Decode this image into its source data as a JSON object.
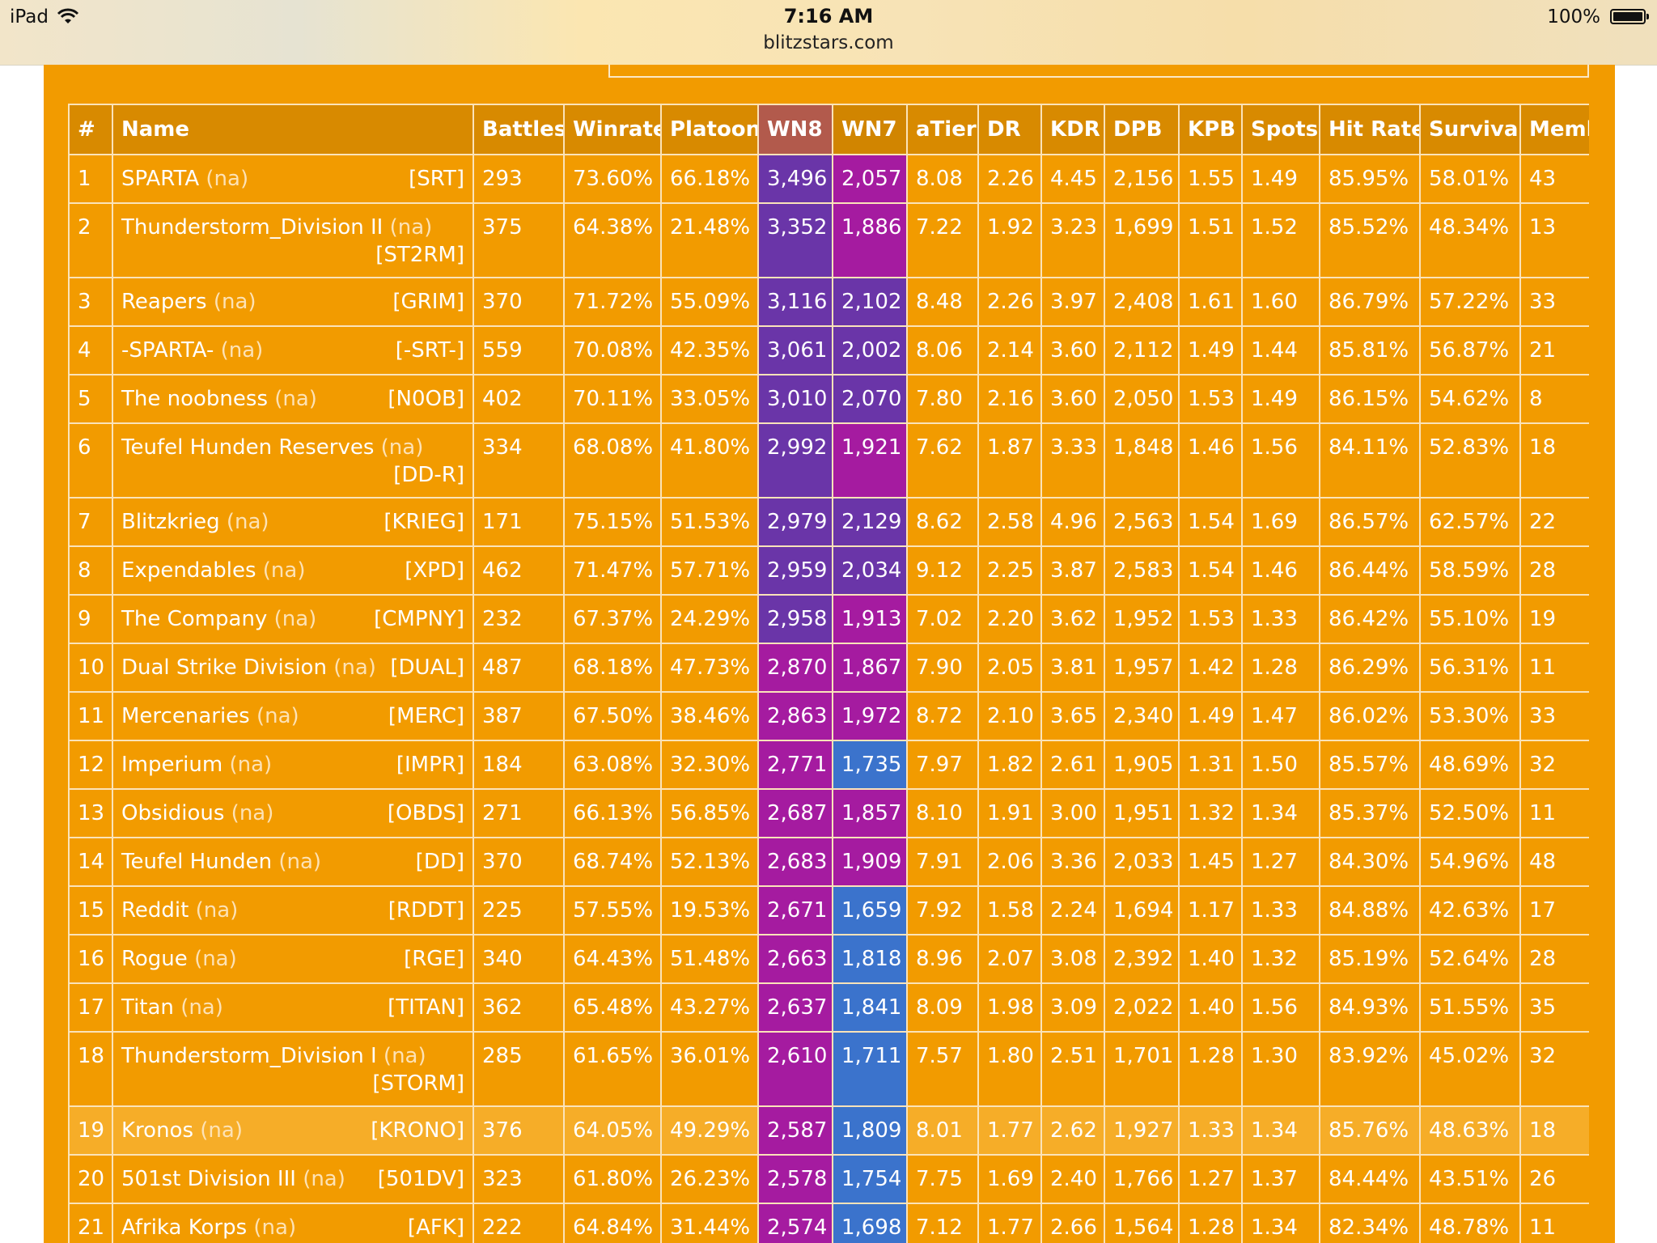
{
  "status_bar": {
    "carrier": "iPad",
    "time": "7:16 AM",
    "url": "blitzstars.com",
    "battery": "100%"
  },
  "colors": {
    "page_bg": "#f29b00",
    "purple": "#6a35a8",
    "magenta": "#a51ba0",
    "blue": "#3b73cc"
  },
  "table": {
    "headers": [
      "#",
      "Name",
      "Battles",
      "Winrate",
      "Platoon",
      "WN8",
      "WN7",
      "aTier",
      "DR",
      "KDR",
      "DPB",
      "KPB",
      "Spots",
      "Hit Rate",
      "Survival",
      "Memb"
    ],
    "rows": [
      {
        "rank": "1",
        "name": "SPARTA",
        "region": "(na)",
        "tag": "[SRT]",
        "battles": "293",
        "winrate": "73.60%",
        "platoon": "66.18%",
        "wn8": "3,496",
        "wn8_color": "#6a35a8",
        "wn7": "2,057",
        "wn7_color": "#a51ba0",
        "atier": "8.08",
        "dr": "2.26",
        "kdr": "4.45",
        "dpb": "2,156",
        "kpb": "1.55",
        "spots": "1.49",
        "hitrate": "85.95%",
        "survival": "58.01%",
        "members": "43"
      },
      {
        "rank": "2",
        "name": "Thunderstorm_Division II",
        "region": "(na)",
        "tag": "[ST2RM]",
        "battles": "375",
        "winrate": "64.38%",
        "platoon": "21.48%",
        "wn8": "3,352",
        "wn8_color": "#6a35a8",
        "wn7": "1,886",
        "wn7_color": "#a51ba0",
        "atier": "7.22",
        "dr": "1.92",
        "kdr": "3.23",
        "dpb": "1,699",
        "kpb": "1.51",
        "spots": "1.52",
        "hitrate": "85.52%",
        "survival": "48.34%",
        "members": "13"
      },
      {
        "rank": "3",
        "name": "Reapers",
        "region": "(na)",
        "tag": "[GRIM]",
        "battles": "370",
        "winrate": "71.72%",
        "platoon": "55.09%",
        "wn8": "3,116",
        "wn8_color": "#6a35a8",
        "wn7": "2,102",
        "wn7_color": "#6a35a8",
        "atier": "8.48",
        "dr": "2.26",
        "kdr": "3.97",
        "dpb": "2,408",
        "kpb": "1.61",
        "spots": "1.60",
        "hitrate": "86.79%",
        "survival": "57.22%",
        "members": "33"
      },
      {
        "rank": "4",
        "name": "-SPARTA-",
        "region": "(na)",
        "tag": "[-SRT-]",
        "battles": "559",
        "winrate": "70.08%",
        "platoon": "42.35%",
        "wn8": "3,061",
        "wn8_color": "#6a35a8",
        "wn7": "2,002",
        "wn7_color": "#6a35a8",
        "atier": "8.06",
        "dr": "2.14",
        "kdr": "3.60",
        "dpb": "2,112",
        "kpb": "1.49",
        "spots": "1.44",
        "hitrate": "85.81%",
        "survival": "56.87%",
        "members": "21"
      },
      {
        "rank": "5",
        "name": "The noobness",
        "region": "(na)",
        "tag": "[N0OB]",
        "battles": "402",
        "winrate": "70.11%",
        "platoon": "33.05%",
        "wn8": "3,010",
        "wn8_color": "#6a35a8",
        "wn7": "2,070",
        "wn7_color": "#6a35a8",
        "atier": "7.80",
        "dr": "2.16",
        "kdr": "3.60",
        "dpb": "2,050",
        "kpb": "1.53",
        "spots": "1.49",
        "hitrate": "86.15%",
        "survival": "54.62%",
        "members": "8"
      },
      {
        "rank": "6",
        "name": "Teufel Hunden Reserves",
        "region": "(na)",
        "tag": "[DD-R]",
        "battles": "334",
        "winrate": "68.08%",
        "platoon": "41.80%",
        "wn8": "2,992",
        "wn8_color": "#6a35a8",
        "wn7": "1,921",
        "wn7_color": "#a51ba0",
        "atier": "7.62",
        "dr": "1.87",
        "kdr": "3.33",
        "dpb": "1,848",
        "kpb": "1.46",
        "spots": "1.56",
        "hitrate": "84.11%",
        "survival": "52.83%",
        "members": "18"
      },
      {
        "rank": "7",
        "name": "Blitzkrieg",
        "region": "(na)",
        "tag": "[KRIEG]",
        "battles": "171",
        "winrate": "75.15%",
        "platoon": "51.53%",
        "wn8": "2,979",
        "wn8_color": "#6a35a8",
        "wn7": "2,129",
        "wn7_color": "#6a35a8",
        "atier": "8.62",
        "dr": "2.58",
        "kdr": "4.96",
        "dpb": "2,563",
        "kpb": "1.54",
        "spots": "1.69",
        "hitrate": "86.57%",
        "survival": "62.57%",
        "members": "22"
      },
      {
        "rank": "8",
        "name": "Expendables",
        "region": "(na)",
        "tag": "[XPD]",
        "battles": "462",
        "winrate": "71.47%",
        "platoon": "57.71%",
        "wn8": "2,959",
        "wn8_color": "#6a35a8",
        "wn7": "2,034",
        "wn7_color": "#6a35a8",
        "atier": "9.12",
        "dr": "2.25",
        "kdr": "3.87",
        "dpb": "2,583",
        "kpb": "1.54",
        "spots": "1.46",
        "hitrate": "86.44%",
        "survival": "58.59%",
        "members": "28"
      },
      {
        "rank": "9",
        "name": "The Company",
        "region": "(na)",
        "tag": "[CMPNY]",
        "battles": "232",
        "winrate": "67.37%",
        "platoon": "24.29%",
        "wn8": "2,958",
        "wn8_color": "#6a35a8",
        "wn7": "1,913",
        "wn7_color": "#a51ba0",
        "atier": "7.02",
        "dr": "2.20",
        "kdr": "3.62",
        "dpb": "1,952",
        "kpb": "1.53",
        "spots": "1.33",
        "hitrate": "86.42%",
        "survival": "55.10%",
        "members": "19"
      },
      {
        "rank": "10",
        "name": "Dual Strike Division",
        "region": "(na)",
        "tag": "[DUAL]",
        "battles": "487",
        "winrate": "68.18%",
        "platoon": "47.73%",
        "wn8": "2,870",
        "wn8_color": "#a51ba0",
        "wn7": "1,867",
        "wn7_color": "#a51ba0",
        "atier": "7.90",
        "dr": "2.05",
        "kdr": "3.81",
        "dpb": "1,957",
        "kpb": "1.42",
        "spots": "1.28",
        "hitrate": "86.29%",
        "survival": "56.31%",
        "members": "11"
      },
      {
        "rank": "11",
        "name": "Mercenaries",
        "region": "(na)",
        "tag": "[MERC]",
        "battles": "387",
        "winrate": "67.50%",
        "platoon": "38.46%",
        "wn8": "2,863",
        "wn8_color": "#a51ba0",
        "wn7": "1,972",
        "wn7_color": "#a51ba0",
        "atier": "8.72",
        "dr": "2.10",
        "kdr": "3.65",
        "dpb": "2,340",
        "kpb": "1.49",
        "spots": "1.47",
        "hitrate": "86.02%",
        "survival": "53.30%",
        "members": "33"
      },
      {
        "rank": "12",
        "name": "Imperium",
        "region": "(na)",
        "tag": "[IMPR]",
        "battles": "184",
        "winrate": "63.08%",
        "platoon": "32.30%",
        "wn8": "2,771",
        "wn8_color": "#a51ba0",
        "wn7": "1,735",
        "wn7_color": "#3b73cc",
        "atier": "7.97",
        "dr": "1.82",
        "kdr": "2.61",
        "dpb": "1,905",
        "kpb": "1.31",
        "spots": "1.50",
        "hitrate": "85.57%",
        "survival": "48.69%",
        "members": "32"
      },
      {
        "rank": "13",
        "name": "Obsidious",
        "region": "(na)",
        "tag": "[OBDS]",
        "battles": "271",
        "winrate": "66.13%",
        "platoon": "56.85%",
        "wn8": "2,687",
        "wn8_color": "#a51ba0",
        "wn7": "1,857",
        "wn7_color": "#a51ba0",
        "atier": "8.10",
        "dr": "1.91",
        "kdr": "3.00",
        "dpb": "1,951",
        "kpb": "1.32",
        "spots": "1.34",
        "hitrate": "85.37%",
        "survival": "52.50%",
        "members": "11"
      },
      {
        "rank": "14",
        "name": "Teufel Hunden",
        "region": "(na)",
        "tag": "[DD]",
        "battles": "370",
        "winrate": "68.74%",
        "platoon": "52.13%",
        "wn8": "2,683",
        "wn8_color": "#a51ba0",
        "wn7": "1,909",
        "wn7_color": "#a51ba0",
        "atier": "7.91",
        "dr": "2.06",
        "kdr": "3.36",
        "dpb": "2,033",
        "kpb": "1.45",
        "spots": "1.27",
        "hitrate": "84.30%",
        "survival": "54.96%",
        "members": "48"
      },
      {
        "rank": "15",
        "name": "Reddit",
        "region": "(na)",
        "tag": "[RDDT]",
        "battles": "225",
        "winrate": "57.55%",
        "platoon": "19.53%",
        "wn8": "2,671",
        "wn8_color": "#a51ba0",
        "wn7": "1,659",
        "wn7_color": "#3b73cc",
        "atier": "7.92",
        "dr": "1.58",
        "kdr": "2.24",
        "dpb": "1,694",
        "kpb": "1.17",
        "spots": "1.33",
        "hitrate": "84.88%",
        "survival": "42.63%",
        "members": "17"
      },
      {
        "rank": "16",
        "name": "Rogue",
        "region": "(na)",
        "tag": "[RGE]",
        "battles": "340",
        "winrate": "64.43%",
        "platoon": "51.48%",
        "wn8": "2,663",
        "wn8_color": "#a51ba0",
        "wn7": "1,818",
        "wn7_color": "#3b73cc",
        "atier": "8.96",
        "dr": "2.07",
        "kdr": "3.08",
        "dpb": "2,392",
        "kpb": "1.40",
        "spots": "1.32",
        "hitrate": "85.19%",
        "survival": "52.64%",
        "members": "28"
      },
      {
        "rank": "17",
        "name": "Titan",
        "region": "(na)",
        "tag": "[TITAN]",
        "battles": "362",
        "winrate": "65.48%",
        "platoon": "43.27%",
        "wn8": "2,637",
        "wn8_color": "#a51ba0",
        "wn7": "1,841",
        "wn7_color": "#3b73cc",
        "atier": "8.09",
        "dr": "1.98",
        "kdr": "3.09",
        "dpb": "2,022",
        "kpb": "1.40",
        "spots": "1.56",
        "hitrate": "84.93%",
        "survival": "51.55%",
        "members": "35"
      },
      {
        "rank": "18",
        "name": "Thunderstorm_Division I",
        "region": "(na)",
        "tag": "[STORM]",
        "battles": "285",
        "winrate": "61.65%",
        "platoon": "36.01%",
        "wn8": "2,610",
        "wn8_color": "#a51ba0",
        "wn7": "1,711",
        "wn7_color": "#3b73cc",
        "atier": "7.57",
        "dr": "1.80",
        "kdr": "2.51",
        "dpb": "1,701",
        "kpb": "1.28",
        "spots": "1.30",
        "hitrate": "83.92%",
        "survival": "45.02%",
        "members": "32"
      },
      {
        "rank": "19",
        "name": "Kronos",
        "region": "(na)",
        "tag": "[KRONO]",
        "battles": "376",
        "winrate": "64.05%",
        "platoon": "49.29%",
        "wn8": "2,587",
        "wn8_color": "#a51ba0",
        "wn7": "1,809",
        "wn7_color": "#3b73cc",
        "atier": "8.01",
        "dr": "1.77",
        "kdr": "2.62",
        "dpb": "1,927",
        "kpb": "1.33",
        "spots": "1.34",
        "hitrate": "85.76%",
        "survival": "48.63%",
        "members": "18",
        "highlight": true
      },
      {
        "rank": "20",
        "name": "501st Division III",
        "region": "(na)",
        "tag": "[501DV]",
        "battles": "323",
        "winrate": "61.80%",
        "platoon": "26.23%",
        "wn8": "2,578",
        "wn8_color": "#a51ba0",
        "wn7": "1,754",
        "wn7_color": "#3b73cc",
        "atier": "7.75",
        "dr": "1.69",
        "kdr": "2.40",
        "dpb": "1,766",
        "kpb": "1.27",
        "spots": "1.37",
        "hitrate": "84.44%",
        "survival": "43.51%",
        "members": "26"
      },
      {
        "rank": "21",
        "name": "Afrika Korps",
        "region": "(na)",
        "tag": "[AFK]",
        "battles": "222",
        "winrate": "64.84%",
        "platoon": "31.44%",
        "wn8": "2,574",
        "wn8_color": "#a51ba0",
        "wn7": "1,698",
        "wn7_color": "#3b73cc",
        "atier": "7.12",
        "dr": "1.77",
        "kdr": "2.66",
        "dpb": "1,564",
        "kpb": "1.28",
        "spots": "1.34",
        "hitrate": "82.34%",
        "survival": "48.78%",
        "members": "11"
      }
    ]
  }
}
